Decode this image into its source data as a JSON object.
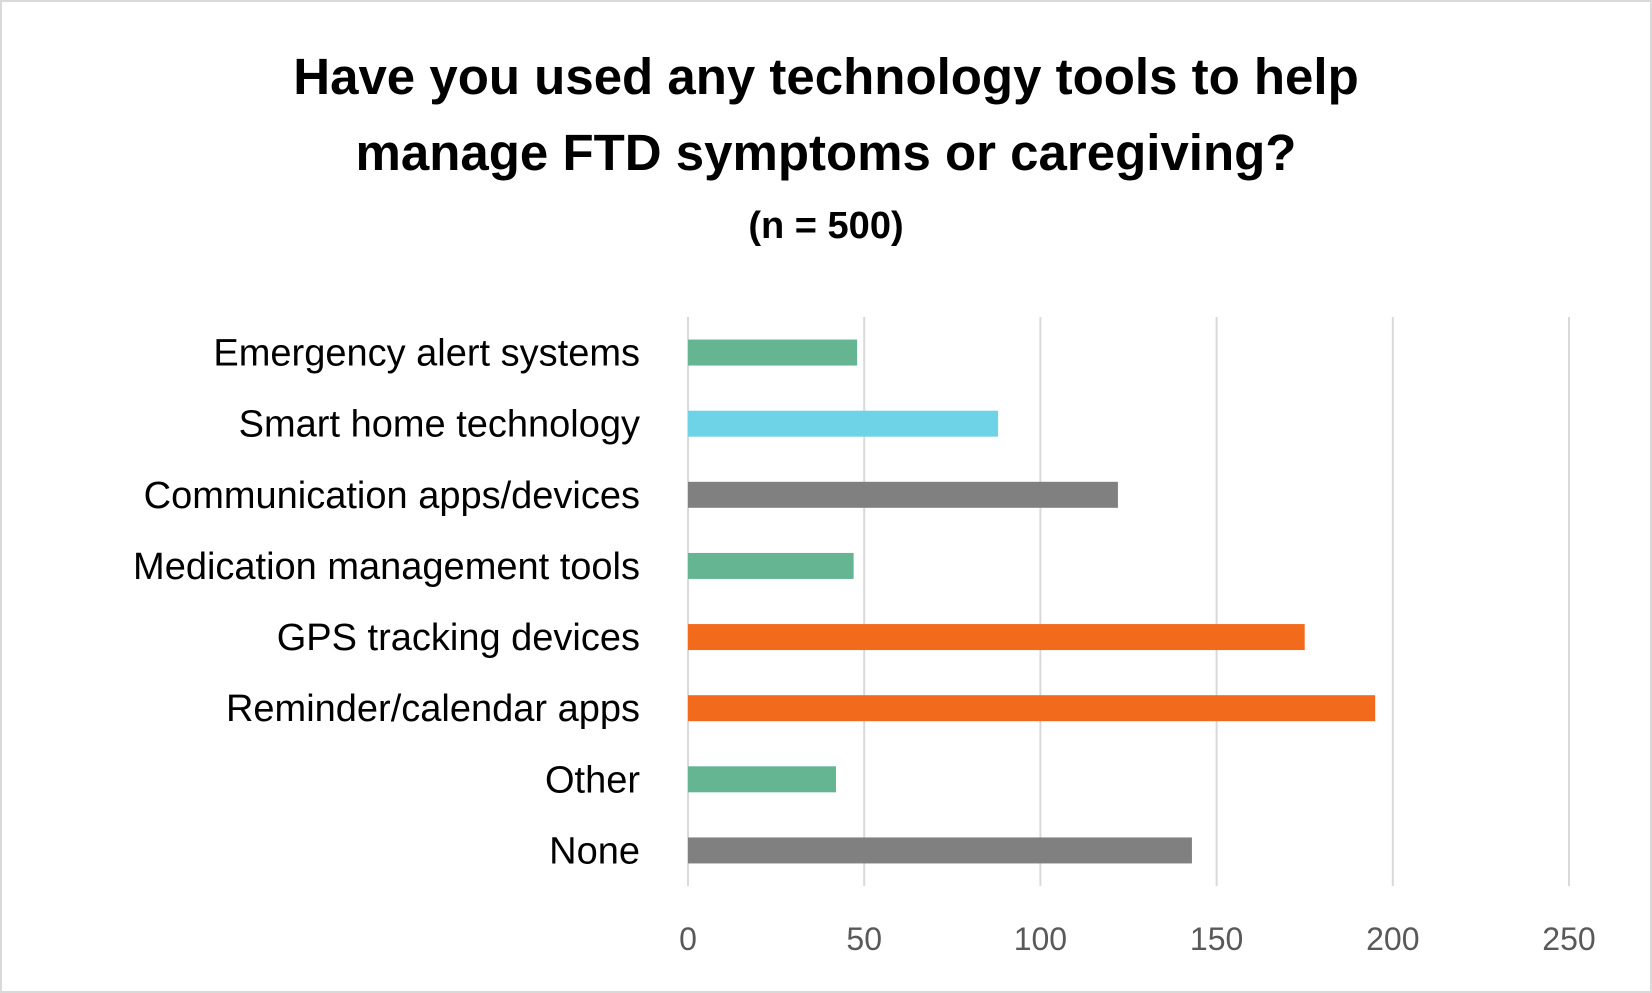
{
  "chart_data": {
    "type": "bar",
    "orientation": "horizontal",
    "title_lines": [
      "Have you used any technology tools to help",
      "manage FTD symptoms or caregiving?"
    ],
    "subtitle": "(n = 500)",
    "categories": [
      "Emergency alert systems",
      "Smart home technology",
      "Communication apps/devices",
      "Medication management tools",
      "GPS tracking devices",
      "Reminder/calendar apps",
      "Other",
      "None"
    ],
    "values": [
      48,
      88,
      122,
      47,
      175,
      195,
      42,
      143
    ],
    "bar_colors": [
      "#65b593",
      "#6fd3e8",
      "#808080",
      "#65b593",
      "#f26b1d",
      "#f26b1d",
      "#65b593",
      "#808080"
    ],
    "xlim": [
      0,
      250
    ],
    "x_ticks": [
      "0",
      "50",
      "100",
      "150",
      "200",
      "250"
    ],
    "grid": "vertical",
    "legend": "none"
  }
}
